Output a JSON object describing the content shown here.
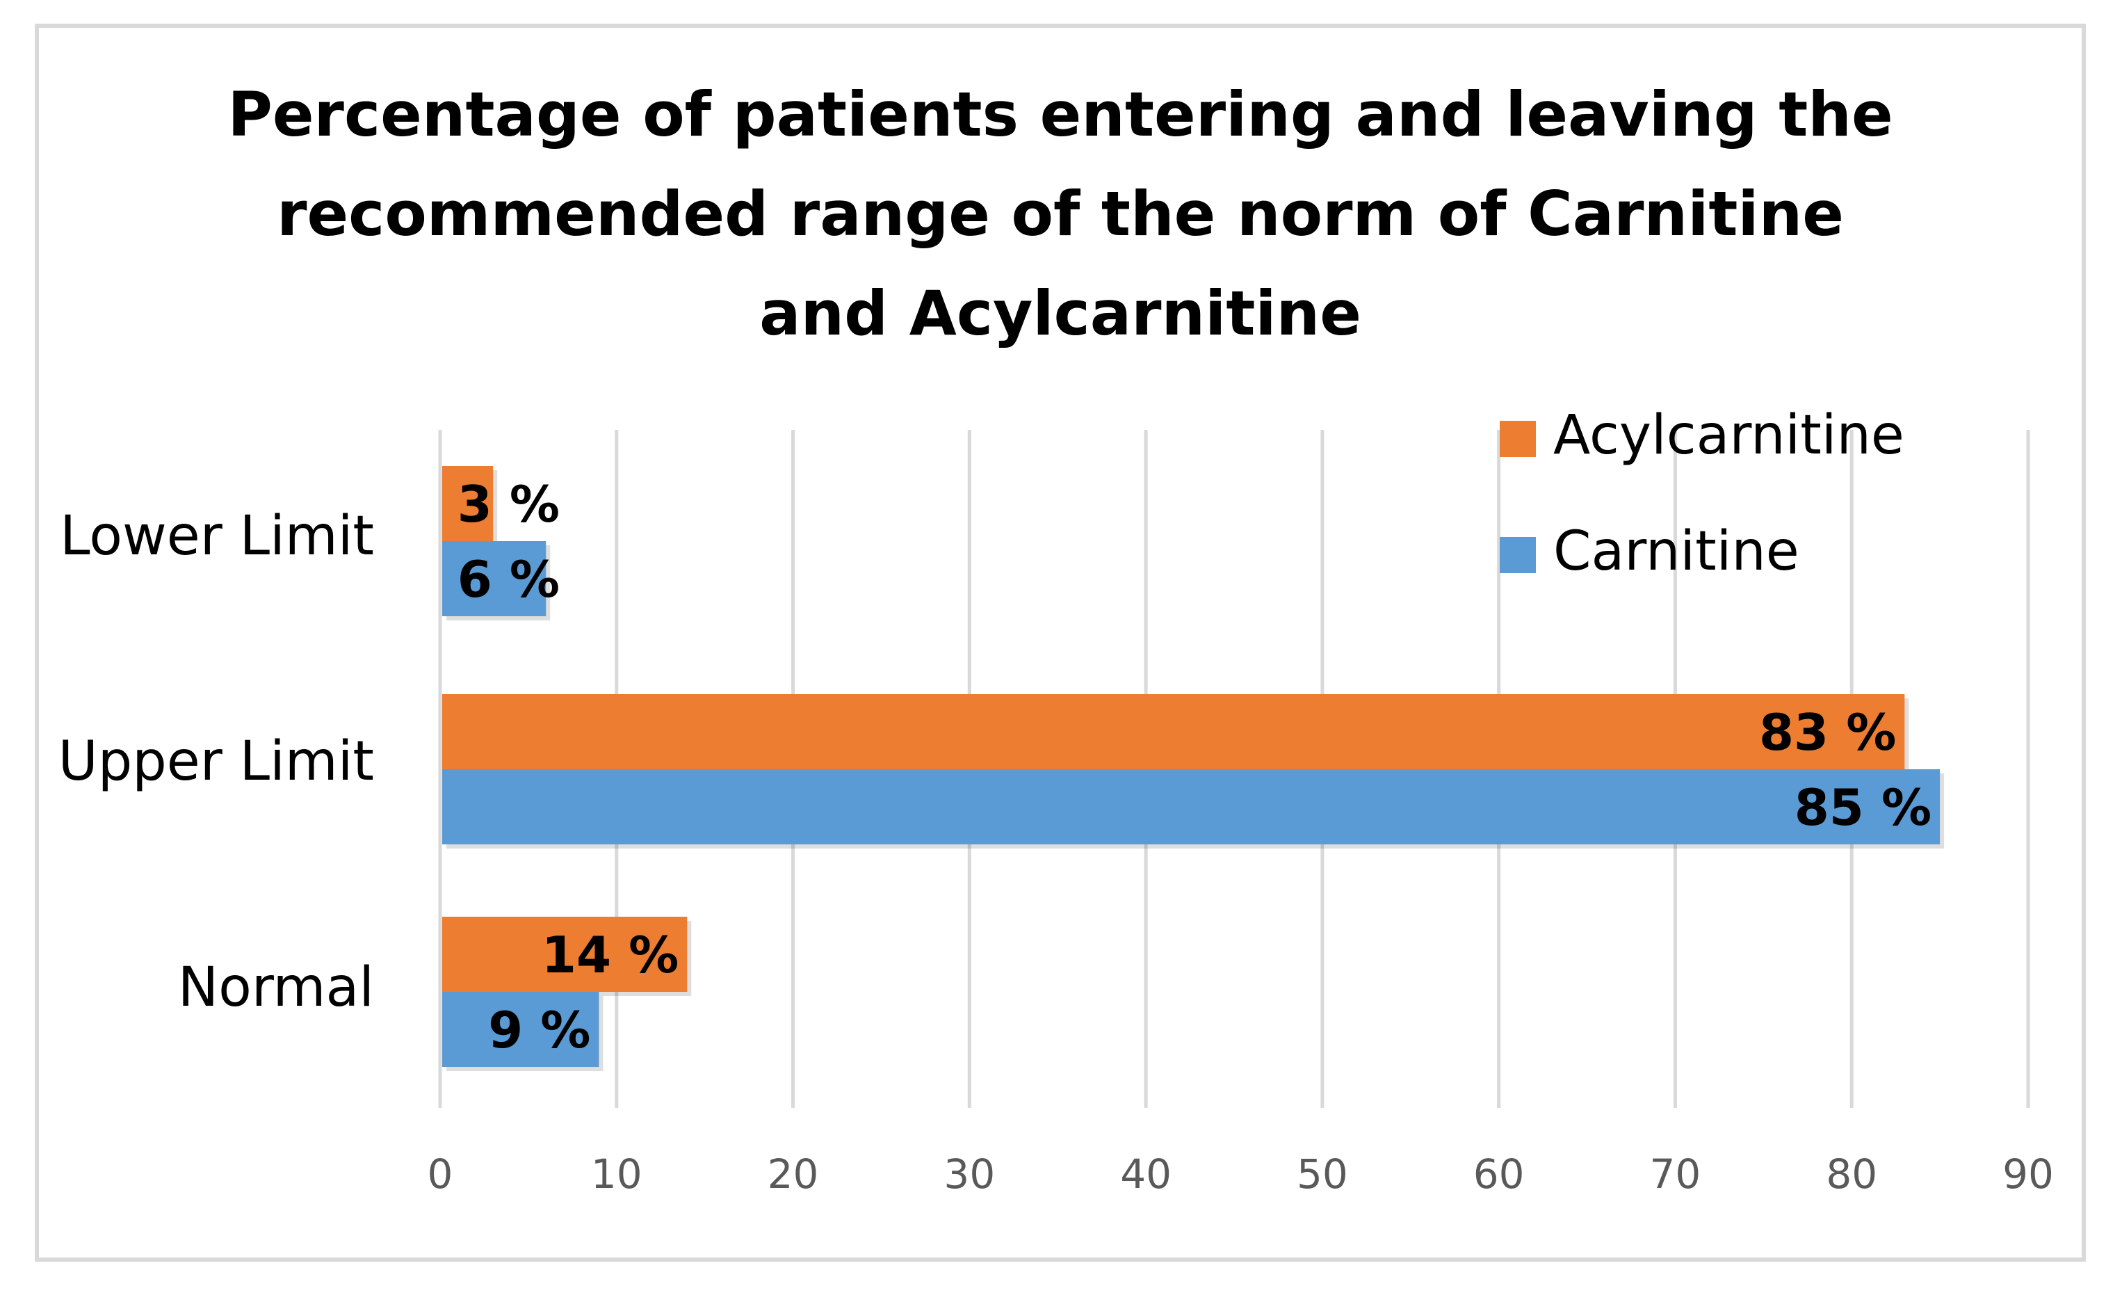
{
  "chart_data": {
    "type": "bar",
    "orientation": "horizontal",
    "title": "Percentage of patients entering and leaving the recommended range of the norm of Carnitine and Acylcarnitine",
    "title_lines": [
      "Percentage of patients entering and leaving the",
      "recommended range of the norm of Carnitine",
      "and Acylcarnitine"
    ],
    "categories": [
      "Lower Limit",
      "Upper Limit",
      "Normal"
    ],
    "series": [
      {
        "name": "Acylcarnitine",
        "color": "#ED7D31",
        "values": [
          3,
          83,
          14
        ],
        "labels": [
          "3 %",
          "83 %",
          "14 %"
        ]
      },
      {
        "name": "Carnitine",
        "color": "#5B9BD5",
        "values": [
          6,
          85,
          9
        ],
        "labels": [
          "6 %",
          "85 %",
          "9 %"
        ]
      }
    ],
    "xlim": [
      0,
      90
    ],
    "xticks": [
      0,
      10,
      20,
      30,
      40,
      50,
      60,
      70,
      80,
      90
    ],
    "xlabel": "",
    "ylabel": "",
    "grid": "vertical",
    "legend": "top-right",
    "gridline_color": "#d9d9d9",
    "tick_label_color": "#595959"
  }
}
